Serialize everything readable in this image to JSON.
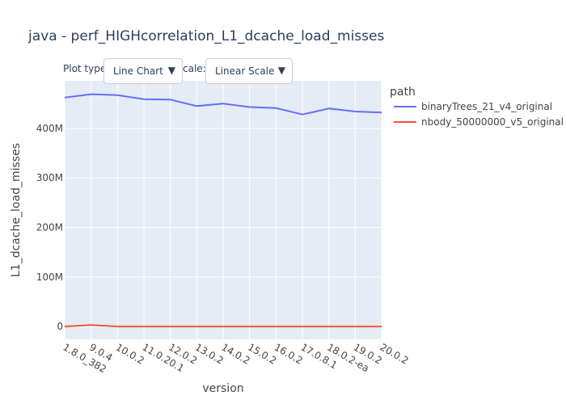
{
  "controls": {
    "plot_type_label": "Plot type",
    "plot_type_value": "Line Chart",
    "scale_label": "cale:",
    "scale_value": "Linear Scale",
    "arrow_glyph": "▼"
  },
  "chart_data": {
    "type": "line",
    "title": "java - perf_HIGHcorrelation_L1_dcache_load_misses",
    "xlabel": "version",
    "ylabel": "L1_dcache_load_misses",
    "categories": [
      "1.8.0_382",
      "9.0.4",
      "10.0.2",
      "11.0.20.1",
      "12.0.2",
      "13.0.2",
      "14.0.2",
      "15.0.2",
      "16.0.2",
      "17.0.8.1",
      "18.0.2-ea",
      "19.0.2",
      "20.0.2"
    ],
    "ylim": [
      -26000000,
      496000000
    ],
    "yticks": [
      0,
      100000000,
      200000000,
      300000000,
      400000000
    ],
    "ytick_labels": [
      "0",
      "100M",
      "200M",
      "300M",
      "400M"
    ],
    "grid": true,
    "legend_title": "path",
    "legend_position": "right",
    "series": [
      {
        "name": "binaryTrees_21_v4_original",
        "color": "#636efa",
        "values": [
          462000000,
          469000000,
          467000000,
          459000000,
          458000000,
          445000000,
          450000000,
          443000000,
          441000000,
          428000000,
          440000000,
          434000000,
          432000000
        ]
      },
      {
        "name": "nbody_50000000_v5_original",
        "color": "#ef553b",
        "values": [
          0,
          3000000,
          0,
          0,
          0,
          0,
          0,
          0,
          0,
          0,
          0,
          0,
          0
        ]
      }
    ],
    "colors": {
      "plot_bg": "#e5ecf6",
      "grid": "#ffffff",
      "text": "#444444",
      "title": "#2a3f5f"
    }
  }
}
